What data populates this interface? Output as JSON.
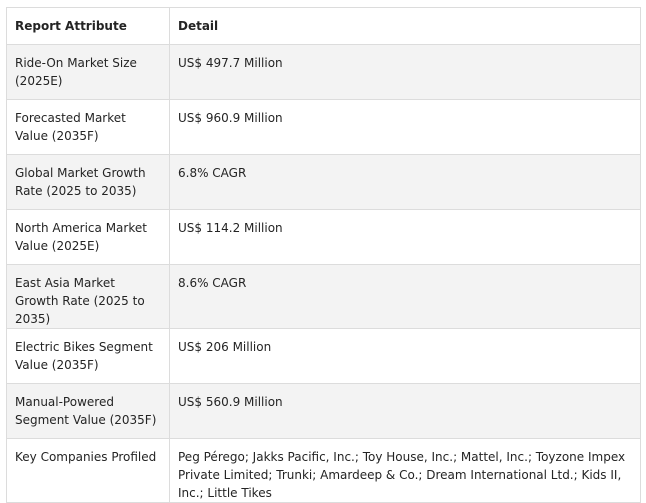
{
  "table": {
    "headers": [
      "Report Attribute",
      "Detail"
    ],
    "rows": [
      {
        "attribute": "Ride-On Market Size (2025E)",
        "detail": "US$ 497.7 Million"
      },
      {
        "attribute": "Forecasted Market Value (2035F)",
        "detail": "US$ 960.9 Million"
      },
      {
        "attribute": "Global Market Growth Rate (2025 to 2035)",
        "detail": "6.8% CAGR"
      },
      {
        "attribute": "North America Market Value (2025E)",
        "detail": "US$ 114.2 Million"
      },
      {
        "attribute": "East Asia Market Growth Rate (2025 to 2035)",
        "detail": "8.6% CAGR"
      },
      {
        "attribute": "Electric Bikes Segment Value (2035F)",
        "detail": "US$ 206 Million"
      },
      {
        "attribute": "Manual-Powered Segment Value (2035F)",
        "detail": "US$ 560.9 Million"
      },
      {
        "attribute": "Key Companies Profiled",
        "detail": "Peg Pérego; Jakks Pacific, Inc.; Toy House, Inc.; Mattel, Inc.; Toyzone Impex Private Limited; Trunki; Amardeep & Co.; Dream International Ltd.; Kids II, Inc.; Little Tikes"
      }
    ]
  }
}
